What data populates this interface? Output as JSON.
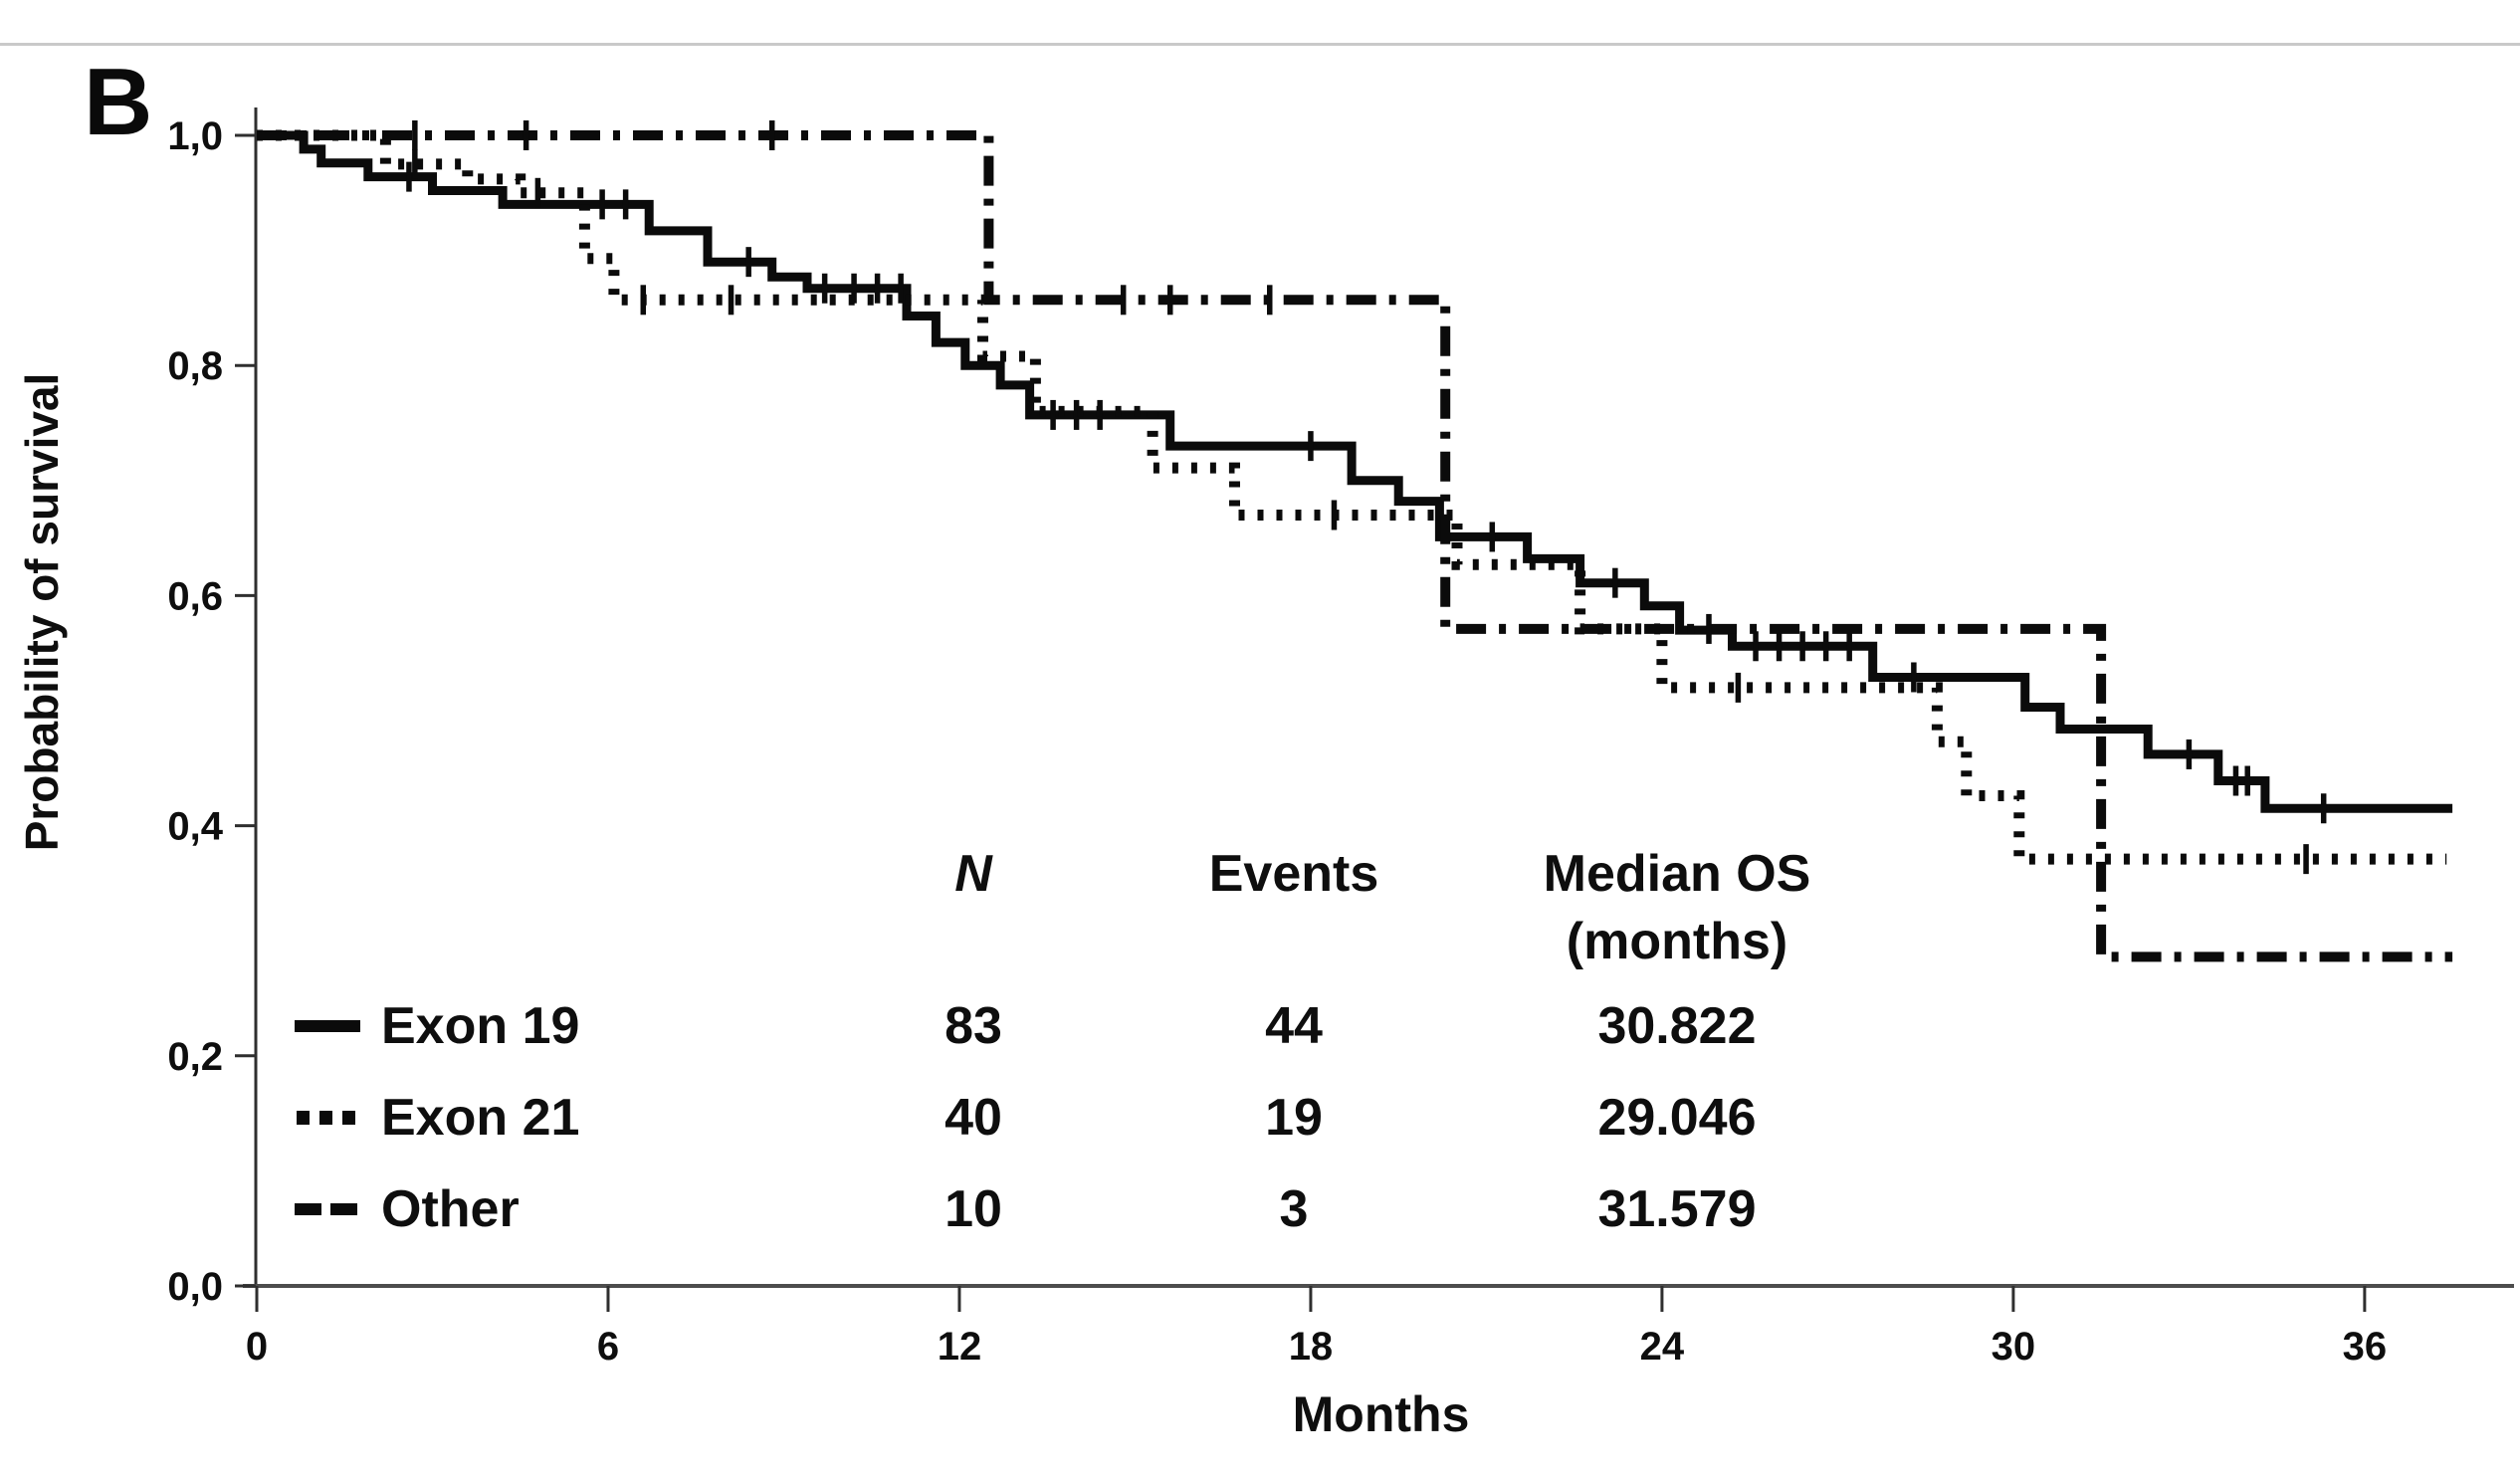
{
  "panel_label": "B",
  "chart_data": {
    "type": "line",
    "subtype": "kaplan-meier-step",
    "title": "",
    "xlabel": "Months",
    "ylabel": "Probability of survival",
    "x_ticks": [
      0,
      6,
      12,
      18,
      24,
      30,
      36
    ],
    "y_ticks": [
      1.0,
      0.8,
      0.6,
      0.4,
      0.2,
      0.0
    ],
    "y_tick_labels": [
      "1,0",
      "0,8",
      "0,6",
      "0,4",
      "0,2",
      "0,0"
    ],
    "xlim": [
      0,
      38.5
    ],
    "ylim": [
      0.0,
      1.0
    ],
    "grid": false,
    "legend_position": "inside-lower-left",
    "curve_color": "#0b0b0b",
    "axis_color": "#4d4d4d",
    "legend_table": {
      "headers": {
        "n": "N",
        "events": "Events",
        "median_line1": "Median OS",
        "median_line2": "(months)"
      },
      "rows": [
        {
          "label": "Exon 19",
          "n": "83",
          "events": "44",
          "median": "30.822"
        },
        {
          "label": "Exon 21",
          "n": "40",
          "events": "19",
          "median": "29.046"
        },
        {
          "label": "Other",
          "n": "10",
          "events": "3",
          "median": "31.579"
        }
      ]
    },
    "series": [
      {
        "name": "Exon 19",
        "style": "solid",
        "n": 83,
        "events": 44,
        "median_os_months": 30.822,
        "steps": [
          [
            0,
            1.0
          ],
          [
            0.8,
            0.988
          ],
          [
            1.1,
            0.976
          ],
          [
            1.9,
            0.964
          ],
          [
            3.0,
            0.952
          ],
          [
            4.2,
            0.94
          ],
          [
            6.7,
            0.917
          ],
          [
            7.7,
            0.89
          ],
          [
            8.8,
            0.877
          ],
          [
            9.4,
            0.867
          ],
          [
            11.1,
            0.843
          ],
          [
            11.6,
            0.82
          ],
          [
            12.1,
            0.8
          ],
          [
            12.7,
            0.783
          ],
          [
            13.2,
            0.757
          ],
          [
            15.6,
            0.73
          ],
          [
            18.7,
            0.7
          ],
          [
            19.5,
            0.682
          ],
          [
            20.2,
            0.651
          ],
          [
            21.7,
            0.632
          ],
          [
            22.6,
            0.611
          ],
          [
            23.7,
            0.591
          ],
          [
            24.3,
            0.57
          ],
          [
            25.2,
            0.556
          ],
          [
            27.6,
            0.529
          ],
          [
            30.2,
            0.503
          ],
          [
            30.8,
            0.484
          ],
          [
            32.3,
            0.462
          ],
          [
            33.5,
            0.439
          ],
          [
            34.3,
            0.415
          ],
          [
            37.5,
            0.415
          ]
        ],
        "censors": [
          [
            2.6,
            0.964
          ],
          [
            5.9,
            0.94
          ],
          [
            6.3,
            0.94
          ],
          [
            8.4,
            0.89
          ],
          [
            9.7,
            0.867
          ],
          [
            10.2,
            0.867
          ],
          [
            10.6,
            0.867
          ],
          [
            11.0,
            0.867
          ],
          [
            13.6,
            0.757
          ],
          [
            14.0,
            0.757
          ],
          [
            14.4,
            0.757
          ],
          [
            18.0,
            0.73
          ],
          [
            21.1,
            0.651
          ],
          [
            23.2,
            0.611
          ],
          [
            25.6,
            0.556
          ],
          [
            26.0,
            0.556
          ],
          [
            26.4,
            0.556
          ],
          [
            26.8,
            0.556
          ],
          [
            27.2,
            0.556
          ],
          [
            28.3,
            0.529
          ],
          [
            33.0,
            0.462
          ],
          [
            33.8,
            0.439
          ],
          [
            34.0,
            0.439
          ],
          [
            35.3,
            0.415
          ]
        ]
      },
      {
        "name": "Exon 21",
        "style": "dotted",
        "n": 40,
        "events": 19,
        "median_os_months": 29.046,
        "steps": [
          [
            0,
            1.0
          ],
          [
            2.2,
            0.975
          ],
          [
            3.6,
            0.962
          ],
          [
            4.5,
            0.95
          ],
          [
            5.6,
            0.893
          ],
          [
            6.1,
            0.857
          ],
          [
            12.4,
            0.808
          ],
          [
            13.3,
            0.76
          ],
          [
            15.3,
            0.711
          ],
          [
            16.7,
            0.67
          ],
          [
            20.5,
            0.627
          ],
          [
            22.6,
            0.571
          ],
          [
            24.0,
            0.52
          ],
          [
            28.7,
            0.473
          ],
          [
            29.2,
            0.426
          ],
          [
            30.1,
            0.371
          ],
          [
            37.4,
            0.371
          ]
        ],
        "censors": [
          [
            2.7,
            0.975
          ],
          [
            4.8,
            0.95
          ],
          [
            6.6,
            0.857
          ],
          [
            8.1,
            0.857
          ],
          [
            18.4,
            0.67
          ],
          [
            25.3,
            0.52
          ],
          [
            35.0,
            0.371
          ]
        ]
      },
      {
        "name": "Other",
        "style": "dashdot",
        "n": 10,
        "events": 3,
        "median_os_months": 31.579,
        "steps": [
          [
            0,
            1.0
          ],
          [
            12.5,
            0.857
          ],
          [
            20.3,
            0.571
          ],
          [
            31.5,
            0.286
          ],
          [
            37.5,
            0.286
          ]
        ],
        "censors": [
          [
            2.7,
            1.0
          ],
          [
            4.6,
            1.0
          ],
          [
            8.8,
            1.0
          ],
          [
            14.8,
            0.857
          ],
          [
            15.6,
            0.857
          ],
          [
            17.3,
            0.857
          ],
          [
            24.8,
            0.571
          ]
        ]
      }
    ]
  }
}
